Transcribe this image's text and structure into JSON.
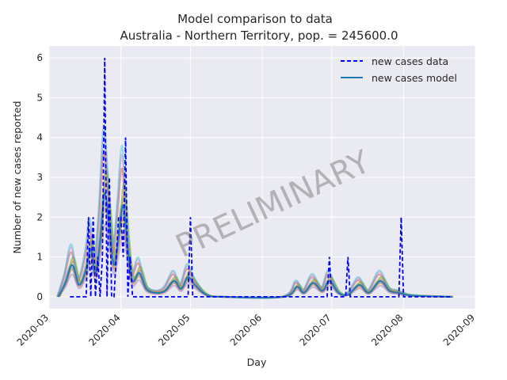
{
  "chart_data": {
    "type": "line",
    "title": "Model comparison to data",
    "subtitle": "Australia - Northern Territory, pop. = 245600.0",
    "xlabel": "Day",
    "ylabel": "Number of new cases reported",
    "watermark": "PRELIMINARY",
    "xlim": [
      "2020-03-01",
      "2020-09-01"
    ],
    "ylim": [
      -0.3,
      6.3
    ],
    "x_ticks": [
      "2020-03",
      "2020-04",
      "2020-05",
      "2020-06",
      "2020-07",
      "2020-08",
      "2020-09"
    ],
    "y_ticks": [
      0,
      1,
      2,
      3,
      4,
      5,
      6
    ],
    "grid": true,
    "legend_placement": "top-right",
    "legend": [
      {
        "label": "new cases data",
        "style": "dashed",
        "color": "#0000ff"
      },
      {
        "label": "new cases model",
        "style": "solid",
        "color": "#1f77b4"
      }
    ],
    "series": [
      {
        "name": "new cases data",
        "color": "#0000ff",
        "style": "dashed",
        "points": [
          [
            "2020-03-10",
            0
          ],
          [
            "2020-03-17",
            0
          ],
          [
            "2020-03-18",
            2
          ],
          [
            "2020-03-19",
            0
          ],
          [
            "2020-03-20",
            2
          ],
          [
            "2020-03-21",
            0
          ],
          [
            "2020-03-22",
            1
          ],
          [
            "2020-03-23",
            0
          ],
          [
            "2020-03-24",
            1
          ],
          [
            "2020-03-25",
            6
          ],
          [
            "2020-03-26",
            0
          ],
          [
            "2020-03-27",
            3
          ],
          [
            "2020-03-28",
            0
          ],
          [
            "2020-03-29",
            0
          ],
          [
            "2020-03-30",
            1
          ],
          [
            "2020-03-31",
            2
          ],
          [
            "2020-04-01",
            2
          ],
          [
            "2020-04-02",
            1
          ],
          [
            "2020-04-03",
            4
          ],
          [
            "2020-04-04",
            0
          ],
          [
            "2020-04-05",
            1
          ],
          [
            "2020-04-06",
            0
          ],
          [
            "2020-04-30",
            0
          ],
          [
            "2020-05-01",
            2
          ],
          [
            "2020-05-02",
            0
          ],
          [
            "2020-06-29",
            0
          ],
          [
            "2020-06-30",
            1
          ],
          [
            "2020-07-01",
            0
          ],
          [
            "2020-07-07",
            0
          ],
          [
            "2020-07-08",
            1
          ],
          [
            "2020-07-09",
            0
          ],
          [
            "2020-07-30",
            0
          ],
          [
            "2020-07-31",
            2
          ],
          [
            "2020-08-01",
            0
          ],
          [
            "2020-08-22",
            0
          ]
        ]
      },
      {
        "name": "new cases model",
        "color": "#1f77b4",
        "style": "solid",
        "points": [
          [
            "2020-03-05",
            0
          ],
          [
            "2020-03-08",
            0.35
          ],
          [
            "2020-03-11",
            0.8
          ],
          [
            "2020-03-14",
            0.3
          ],
          [
            "2020-03-17",
            0.7
          ],
          [
            "2020-03-19",
            1.2
          ],
          [
            "2020-03-21",
            0.6
          ],
          [
            "2020-03-23",
            1.4
          ],
          [
            "2020-03-25",
            2.6
          ],
          [
            "2020-03-27",
            1.8
          ],
          [
            "2020-03-29",
            0.8
          ],
          [
            "2020-03-31",
            1.5
          ],
          [
            "2020-04-02",
            2.3
          ],
          [
            "2020-04-04",
            1.2
          ],
          [
            "2020-04-06",
            0.4
          ],
          [
            "2020-04-09",
            0.6
          ],
          [
            "2020-04-12",
            0.2
          ],
          [
            "2020-04-16",
            0.1
          ],
          [
            "2020-04-20",
            0.15
          ],
          [
            "2020-04-24",
            0.4
          ],
          [
            "2020-04-27",
            0.2
          ],
          [
            "2020-04-30",
            0.5
          ],
          [
            "2020-05-03",
            0.3
          ],
          [
            "2020-05-08",
            0.05
          ],
          [
            "2020-05-15",
            0
          ],
          [
            "2020-06-10",
            0
          ],
          [
            "2020-06-16",
            0.25
          ],
          [
            "2020-06-19",
            0.1
          ],
          [
            "2020-06-23",
            0.35
          ],
          [
            "2020-06-27",
            0.15
          ],
          [
            "2020-06-30",
            0.4
          ],
          [
            "2020-07-04",
            0.1
          ],
          [
            "2020-07-08",
            0.05
          ],
          [
            "2020-07-13",
            0.3
          ],
          [
            "2020-07-17",
            0.1
          ],
          [
            "2020-07-22",
            0.4
          ],
          [
            "2020-07-26",
            0.15
          ],
          [
            "2020-07-30",
            0.1
          ],
          [
            "2020-08-05",
            0.03
          ],
          [
            "2020-08-22",
            0
          ]
        ]
      }
    ],
    "ensemble_colors": [
      "#1f77b4",
      "#ff7f0e",
      "#2ca02c",
      "#d62728",
      "#9467bd",
      "#8c564b",
      "#e377c2",
      "#7f7f7f",
      "#bcbd22",
      "#17becf"
    ],
    "ensemble_scales": [
      1.0,
      0.85,
      1.25,
      1.4,
      0.7,
      1.1,
      1.55,
      0.9,
      1.2,
      1.65
    ]
  }
}
